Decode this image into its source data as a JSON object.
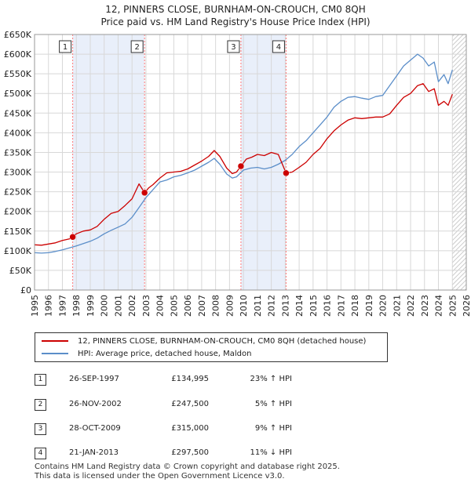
{
  "title_line1": "12, PINNERS CLOSE, BURNHAM-ON-CROUCH, CM0 8QH",
  "title_line2": "Price paid vs. HM Land Registry's House Price Index (HPI)",
  "legend": {
    "property": "12, PINNERS CLOSE, BURNHAM-ON-CROUCH, CM0 8QH (detached house)",
    "hpi": "HPI: Average price, detached house, Maldon"
  },
  "colors": {
    "property": "#cc0000",
    "hpi": "#5b8ec9",
    "shade": "#e9effa",
    "grid": "#d8d8d8",
    "marker_line": "#ff7777"
  },
  "sales": [
    {
      "num": "1",
      "date": "26-SEP-1997",
      "price": "£134,995",
      "hpi": "23% ↑ HPI"
    },
    {
      "num": "2",
      "date": "26-NOV-2002",
      "price": "£247,500",
      "hpi": "5% ↑ HPI"
    },
    {
      "num": "3",
      "date": "28-OCT-2009",
      "price": "£315,000",
      "hpi": "9% ↑ HPI"
    },
    {
      "num": "4",
      "date": "21-JAN-2013",
      "price": "£297,500",
      "hpi": "11% ↓ HPI"
    }
  ],
  "footer": {
    "line1": "Contains HM Land Registry data © Crown copyright and database right 2025.",
    "line2": "This data is licensed under the Open Government Licence v3.0."
  },
  "chart_data": {
    "type": "line",
    "title": "12, PINNERS CLOSE, BURNHAM-ON-CROUCH, CM0 8QH",
    "subtitle": "Price paid vs. HM Land Registry's House Price Index (HPI)",
    "xlabel": "",
    "ylabel": "",
    "xlim": [
      1995,
      2026
    ],
    "ylim": [
      0,
      650000
    ],
    "yticks": [
      0,
      50000,
      100000,
      150000,
      200000,
      250000,
      300000,
      350000,
      400000,
      450000,
      500000,
      550000,
      600000,
      650000
    ],
    "ytick_labels": [
      "£0",
      "£50K",
      "£100K",
      "£150K",
      "£200K",
      "£250K",
      "£300K",
      "£350K",
      "£400K",
      "£450K",
      "£500K",
      "£550K",
      "£600K",
      "£650K"
    ],
    "xticks": [
      1995,
      1996,
      1997,
      1998,
      1999,
      2000,
      2001,
      2002,
      2003,
      2004,
      2005,
      2006,
      2007,
      2008,
      2009,
      2010,
      2011,
      2012,
      2013,
      2014,
      2015,
      2016,
      2017,
      2018,
      2019,
      2020,
      2021,
      2022,
      2023,
      2024,
      2025,
      2026
    ],
    "xtick_labels": [
      "1995",
      "1996",
      "1997",
      "1998",
      "1999",
      "2000",
      "2001",
      "2002",
      "2003",
      "2004",
      "2005",
      "2006",
      "2007",
      "2008",
      "2009",
      "2010",
      "2011",
      "2012",
      "2013",
      "2014",
      "2015",
      "2016",
      "2017",
      "2018",
      "2019",
      "2020",
      "2021",
      "2022",
      "2023",
      "2024",
      "2025",
      "2026"
    ],
    "grid": true,
    "shaded_periods": [
      [
        1997.74,
        2002.9
      ],
      [
        2009.82,
        2013.06
      ]
    ],
    "forecast_from": 2025.0,
    "series": [
      {
        "name": "12, PINNERS CLOSE, BURNHAM-ON-CROUCH, CM0 8QH (detached house)",
        "color": "#cc0000",
        "x": [
          1995.0,
          1995.5,
          1996.0,
          1996.5,
          1997.0,
          1997.5,
          1997.74,
          1998.0,
          1998.5,
          1999.0,
          1999.5,
          2000.0,
          2000.5,
          2001.0,
          2001.5,
          2002.0,
          2002.5,
          2002.9,
          2003.2,
          2003.5,
          2004.0,
          2004.5,
          2005.0,
          2005.5,
          2006.0,
          2006.5,
          2007.0,
          2007.5,
          2007.9,
          2008.3,
          2008.8,
          2009.2,
          2009.5,
          2009.82,
          2010.2,
          2010.6,
          2011.0,
          2011.5,
          2012.0,
          2012.5,
          2013.06,
          2013.5,
          2014.0,
          2014.5,
          2015.0,
          2015.5,
          2016.0,
          2016.5,
          2017.0,
          2017.5,
          2018.0,
          2018.5,
          2019.0,
          2019.5,
          2020.0,
          2020.5,
          2021.0,
          2021.5,
          2022.0,
          2022.5,
          2022.9,
          2023.3,
          2023.7,
          2024.0,
          2024.4,
          2024.7,
          2025.0
        ],
        "values": [
          115000,
          114000,
          117000,
          120000,
          126000,
          130000,
          134995,
          143000,
          150000,
          153000,
          162000,
          180000,
          195000,
          200000,
          215000,
          232000,
          270000,
          247500,
          260000,
          268000,
          285000,
          298000,
          300000,
          302000,
          308000,
          318000,
          328000,
          340000,
          355000,
          340000,
          310000,
          296000,
          300000,
          315000,
          333000,
          338000,
          345000,
          342000,
          350000,
          345000,
          297500,
          300000,
          312000,
          325000,
          345000,
          360000,
          385000,
          405000,
          420000,
          432000,
          438000,
          436000,
          438000,
          440000,
          440000,
          448000,
          470000,
          490000,
          500000,
          520000,
          525000,
          505000,
          512000,
          470000,
          480000,
          470000,
          498000
        ]
      },
      {
        "name": "HPI: Average price, detached house, Maldon",
        "color": "#5b8ec9",
        "x": [
          1995.0,
          1995.5,
          1996.0,
          1996.5,
          1997.0,
          1997.5,
          1998.0,
          1998.5,
          1999.0,
          1999.5,
          2000.0,
          2000.5,
          2001.0,
          2001.5,
          2002.0,
          2002.5,
          2003.0,
          2003.5,
          2004.0,
          2004.5,
          2005.0,
          2005.5,
          2006.0,
          2006.5,
          2007.0,
          2007.5,
          2007.9,
          2008.3,
          2008.8,
          2009.2,
          2009.5,
          2010.0,
          2010.5,
          2011.0,
          2011.5,
          2012.0,
          2012.5,
          2013.0,
          2013.5,
          2014.0,
          2014.5,
          2015.0,
          2015.5,
          2016.0,
          2016.5,
          2017.0,
          2017.5,
          2018.0,
          2018.5,
          2019.0,
          2019.5,
          2020.0,
          2020.5,
          2021.0,
          2021.5,
          2022.0,
          2022.5,
          2022.9,
          2023.3,
          2023.7,
          2024.0,
          2024.4,
          2024.7,
          2025.0
        ],
        "values": [
          95000,
          94000,
          95000,
          98000,
          102000,
          107000,
          112000,
          118000,
          124000,
          132000,
          143000,
          152000,
          160000,
          168000,
          185000,
          210000,
          235000,
          255000,
          275000,
          280000,
          288000,
          292000,
          298000,
          305000,
          315000,
          325000,
          335000,
          320000,
          295000,
          285000,
          288000,
          305000,
          310000,
          312000,
          308000,
          312000,
          320000,
          330000,
          345000,
          365000,
          380000,
          400000,
          420000,
          440000,
          465000,
          480000,
          490000,
          492000,
          488000,
          485000,
          492000,
          495000,
          520000,
          545000,
          570000,
          585000,
          600000,
          590000,
          570000,
          580000,
          530000,
          548000,
          525000,
          560000
        ]
      }
    ],
    "sale_points": [
      {
        "label": "1",
        "x": 1997.74,
        "y": 134995
      },
      {
        "label": "2",
        "x": 2002.9,
        "y": 247500
      },
      {
        "label": "3",
        "x": 2009.82,
        "y": 315000
      },
      {
        "label": "4",
        "x": 2013.06,
        "y": 297500
      }
    ]
  }
}
